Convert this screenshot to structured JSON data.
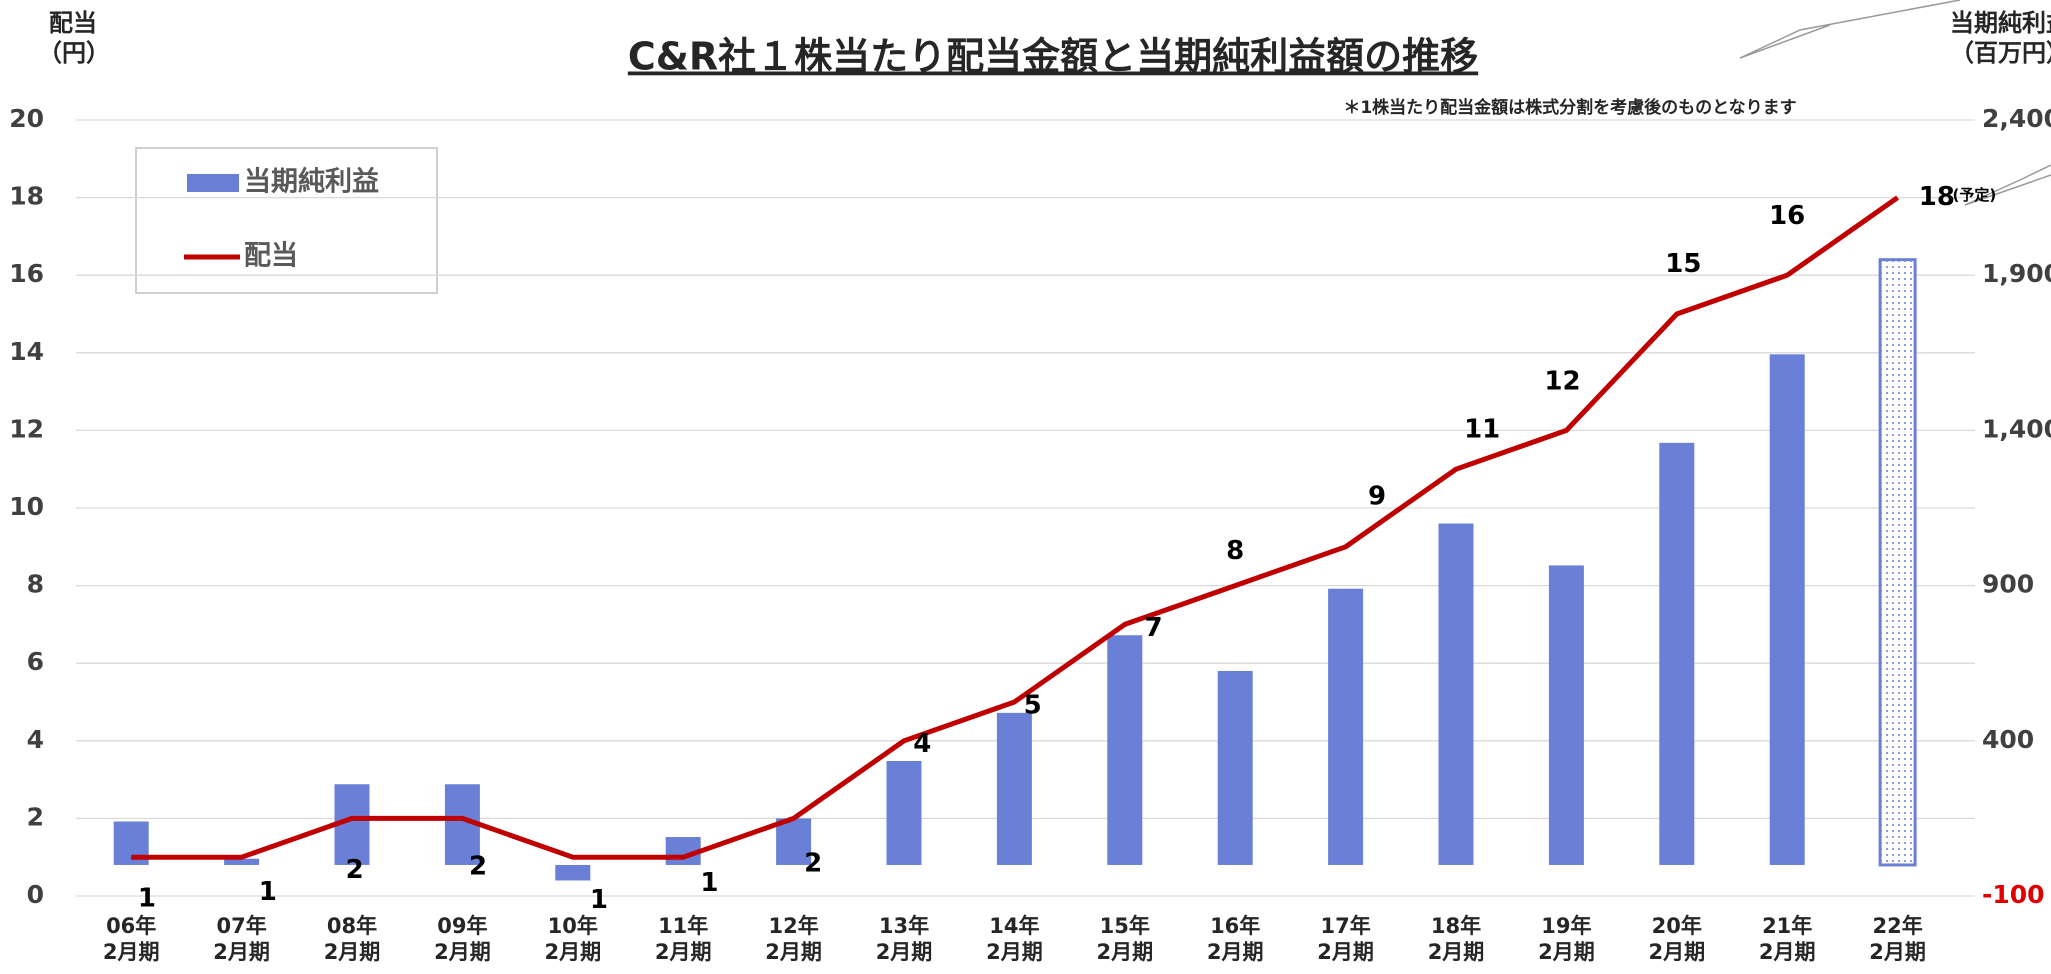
{
  "chart_data": {
    "type": "bar_line",
    "title": "C&R社１株当たり配当金額と当期純利益額の推移",
    "note": "＊1株当たり配当金額は株式分割を考慮後のものとなります",
    "y_label": "配当\n（円）",
    "y2_label": "当期純利益\n（百万円）",
    "categories": [
      "06年\n2月期",
      "07年\n2月期",
      "08年\n2月期",
      "09年\n2月期",
      "10年\n2月期",
      "11年\n2月期",
      "12年\n2月期",
      "13年\n2月期",
      "14年\n2月期",
      "15年\n2月期",
      "16年\n2月期",
      "17年\n2月期",
      "18年\n2月期",
      "19年\n2月期",
      "20年\n2月期",
      "21年\n2月期",
      "22年\n2月期"
    ],
    "series": [
      {
        "name": "当期純利益",
        "type": "bar",
        "axis": "y2",
        "color": "#6a7fd6",
        "values": [
          140,
          20,
          260,
          260,
          -50,
          90,
          150,
          335,
          490,
          740,
          625,
          890,
          1100,
          965,
          1360,
          1645,
          1950
        ]
      },
      {
        "name": "配当",
        "type": "line",
        "color": "#c00000",
        "values": [
          1,
          1,
          2,
          2,
          1,
          1,
          2,
          4,
          5,
          7,
          8,
          9,
          11,
          12,
          15,
          16,
          18
        ]
      }
    ],
    "patterned_bars": [
      16
    ],
    "forecast_label": "(予定)",
    "ylim": [
      0,
      20
    ],
    "yticks": [
      0,
      2,
      4,
      6,
      8,
      10,
      12,
      14,
      16,
      18,
      20
    ],
    "y2lim": [
      -100,
      2400
    ],
    "y2ticks": [
      {
        "value": -100,
        "label": "-100",
        "color": "#e00000"
      },
      400,
      900,
      {
        "value": 1400,
        "label": "1,400"
      },
      {
        "value": 1900,
        "label": "1,900"
      },
      {
        "value": 2400,
        "label": "2,400"
      }
    ],
    "grid": true,
    "legend": "upper left"
  }
}
